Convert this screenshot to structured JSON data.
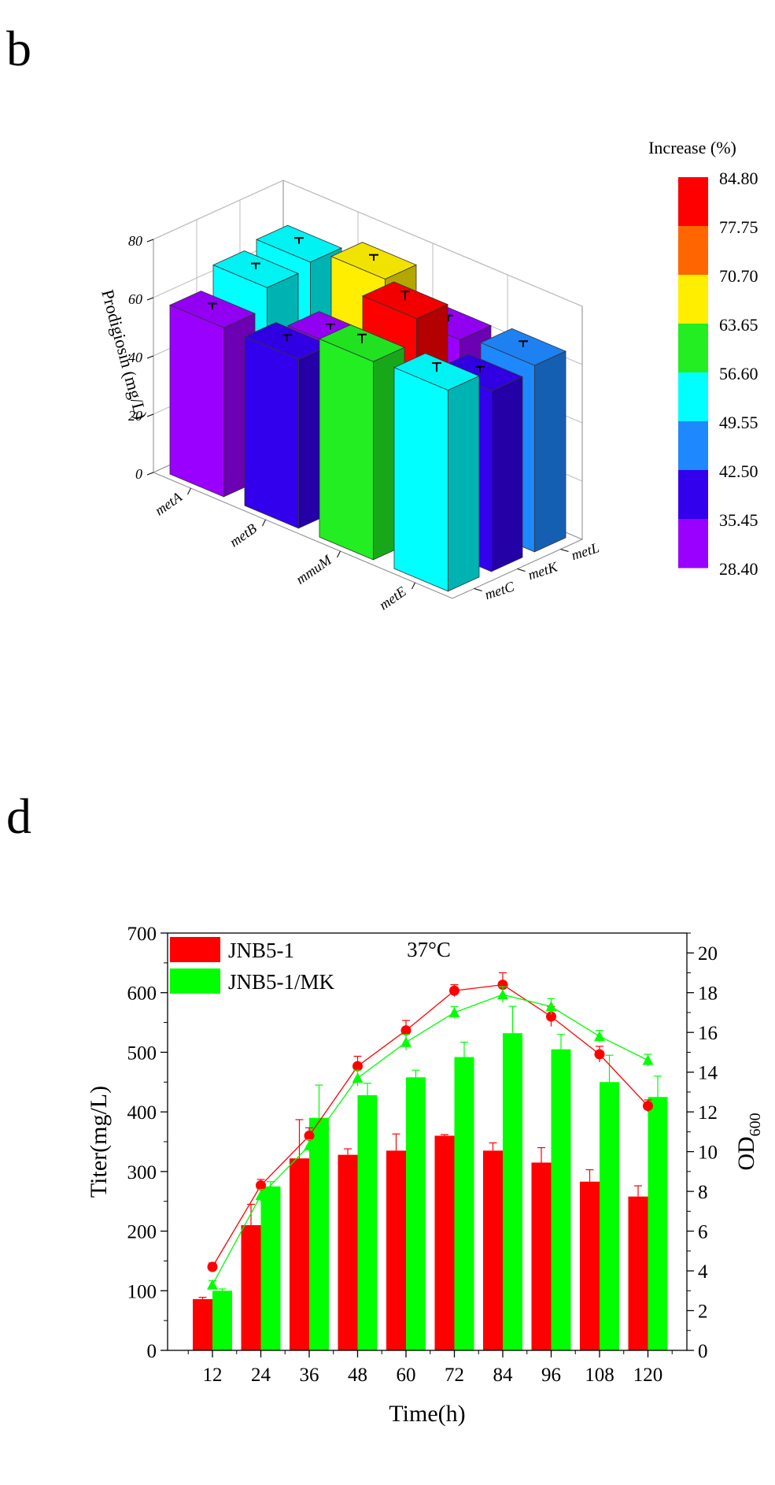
{
  "panels": {
    "b": "b",
    "d": "d"
  },
  "chart_data": [
    {
      "id": "b",
      "type": "bar3d",
      "zlabel": "Prodigiosin (mg/L)",
      "z_ticks": [
        "0",
        "20",
        "40",
        "60",
        "80"
      ],
      "zlim": [
        0,
        80
      ],
      "x_categories": [
        "metA",
        "metB",
        "mmuM",
        "metE"
      ],
      "y_categories": [
        "metC",
        "metK",
        "metL"
      ],
      "colorbar_title": "Increase (%)",
      "colorbar_ticks": [
        "84.80",
        "77.75",
        "70.70",
        "63.65",
        "56.60",
        "49.55",
        "42.50",
        "35.45",
        "28.40"
      ],
      "colorbar_colors": [
        "#ff0000",
        "#ff6600",
        "#ffee00",
        "#22ee22",
        "#00ffff",
        "#1e88ff",
        "#3300ee",
        "#9a00ff"
      ],
      "bars": [
        {
          "x": "metA",
          "y": "metL",
          "value": 67,
          "error": 2,
          "color": "#00ffff"
        },
        {
          "x": "mmuM",
          "y": "metL",
          "value": 62,
          "error": 2,
          "color": "#9a00ff"
        },
        {
          "x": "metE",
          "y": "metL",
          "value": 64,
          "error": 2,
          "color": "#1e88ff"
        },
        {
          "x": "metE",
          "y": "metK",
          "value": 62,
          "error": 2,
          "color": "#3300ee"
        },
        {
          "x": "metA",
          "y": "metK",
          "value": 65,
          "error": 2,
          "color": "#00ffff"
        },
        {
          "x": "metB",
          "y": "metK",
          "value": 55,
          "error": 2,
          "color": "#9a00ff"
        },
        {
          "x": "mmuM",
          "y": "metK",
          "value": 76,
          "error": 3,
          "color": "#ff0000"
        },
        {
          "x": "metB",
          "y": "metL",
          "value": 72,
          "error": 2,
          "color": "#ffee00"
        },
        {
          "x": "metA",
          "y": "metC",
          "value": 58,
          "error": 2,
          "color": "#9a00ff"
        },
        {
          "x": "metB",
          "y": "metC",
          "value": 58,
          "error": 2,
          "color": "#3300ee"
        },
        {
          "x": "mmuM",
          "y": "metC",
          "value": 68,
          "error": 3,
          "color": "#22ee22"
        },
        {
          "x": "metE",
          "y": "metC",
          "value": 69,
          "error": 3,
          "color": "#00ffff"
        }
      ]
    },
    {
      "id": "d",
      "type": "bar+line",
      "title": "37°C",
      "xlabel": "Time(h)",
      "ylabel": "Titer(mg/L)",
      "y2label": "OD",
      "y2label_sub": "600",
      "categories": [
        "12",
        "24",
        "36",
        "48",
        "60",
        "72",
        "84",
        "96",
        "108",
        "120"
      ],
      "ylim": [
        0,
        700
      ],
      "y_ticks": [
        "0",
        "100",
        "200",
        "300",
        "400",
        "500",
        "600",
        "700"
      ],
      "y2lim": [
        0,
        21
      ],
      "y2_ticks": [
        "0",
        "2",
        "4",
        "6",
        "8",
        "10",
        "12",
        "14",
        "16",
        "18",
        "20"
      ],
      "series": [
        {
          "name": "JNB5-1",
          "color": "#ff0000",
          "values": [
            86,
            210,
            322,
            328,
            335,
            360,
            335,
            315,
            283,
            258
          ],
          "errors": [
            3,
            35,
            65,
            10,
            28,
            2,
            13,
            25,
            20,
            18
          ],
          "od": [
            4.2,
            8.3,
            10.8,
            14.3,
            16.1,
            18.1,
            18.4,
            16.8,
            14.9,
            12.3
          ],
          "od_errors": [
            0.2,
            0.3,
            0.4,
            0.5,
            0.5,
            0.3,
            0.6,
            0.5,
            0.4,
            0.3
          ]
        },
        {
          "name": "JNB5-1/MK",
          "color": "#00ff00",
          "values": [
            100,
            275,
            390,
            428,
            458,
            492,
            532,
            505,
            450,
            425
          ],
          "errors": [
            3,
            8,
            55,
            20,
            12,
            25,
            45,
            25,
            45,
            35
          ],
          "od": [
            3.3,
            7.8,
            10.3,
            13.7,
            15.5,
            17.0,
            17.9,
            17.3,
            15.8,
            14.6
          ],
          "od_errors": [
            0.2,
            0.3,
            0.3,
            0.4,
            0.4,
            0.3,
            0.4,
            0.4,
            0.3,
            0.3
          ]
        }
      ]
    }
  ]
}
